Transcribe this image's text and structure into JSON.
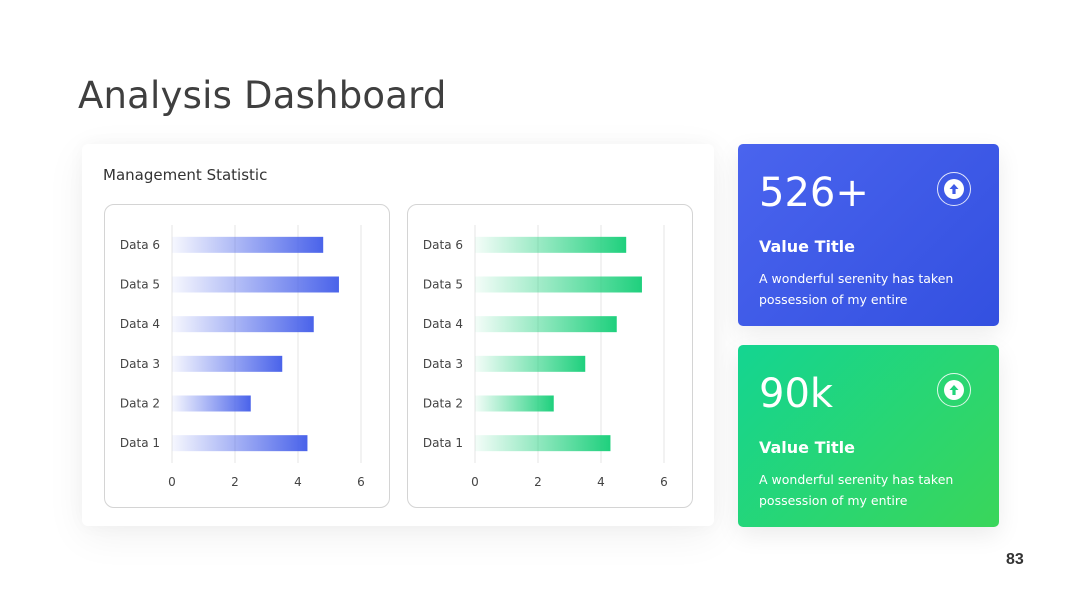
{
  "title": "Analysis Dashboard",
  "panel": {
    "title": "Management Statistic"
  },
  "chart_data": [
    {
      "type": "bar",
      "orientation": "horizontal",
      "categories": [
        "Data 1",
        "Data 2",
        "Data 3",
        "Data 4",
        "Data 5",
        "Data 6"
      ],
      "values": [
        4.3,
        2.5,
        3.5,
        4.5,
        5.3,
        4.8
      ],
      "xlim": [
        0,
        6
      ],
      "xticks": [
        0,
        2,
        4,
        6
      ],
      "grid": true,
      "color": "#4a63ea"
    },
    {
      "type": "bar",
      "orientation": "horizontal",
      "categories": [
        "Data 1",
        "Data 2",
        "Data 3",
        "Data 4",
        "Data 5",
        "Data 6"
      ],
      "values": [
        4.3,
        2.5,
        3.5,
        4.5,
        5.3,
        4.8
      ],
      "xlim": [
        0,
        6
      ],
      "xticks": [
        0,
        2,
        4,
        6
      ],
      "grid": true,
      "color": "#1fd07d"
    }
  ],
  "cards": [
    {
      "value": "526+",
      "title": "Value Title",
      "description": "A wonderful serenity has taken possession of my entire",
      "icon": "arrow-up-circle-icon",
      "color": "#3f5ae6"
    },
    {
      "value": "90k",
      "title": "Value Title",
      "description": "A wonderful serenity has taken possession of my entire",
      "icon": "arrow-up-circle-icon",
      "color": "#22d47a"
    }
  ],
  "page_number": "83"
}
